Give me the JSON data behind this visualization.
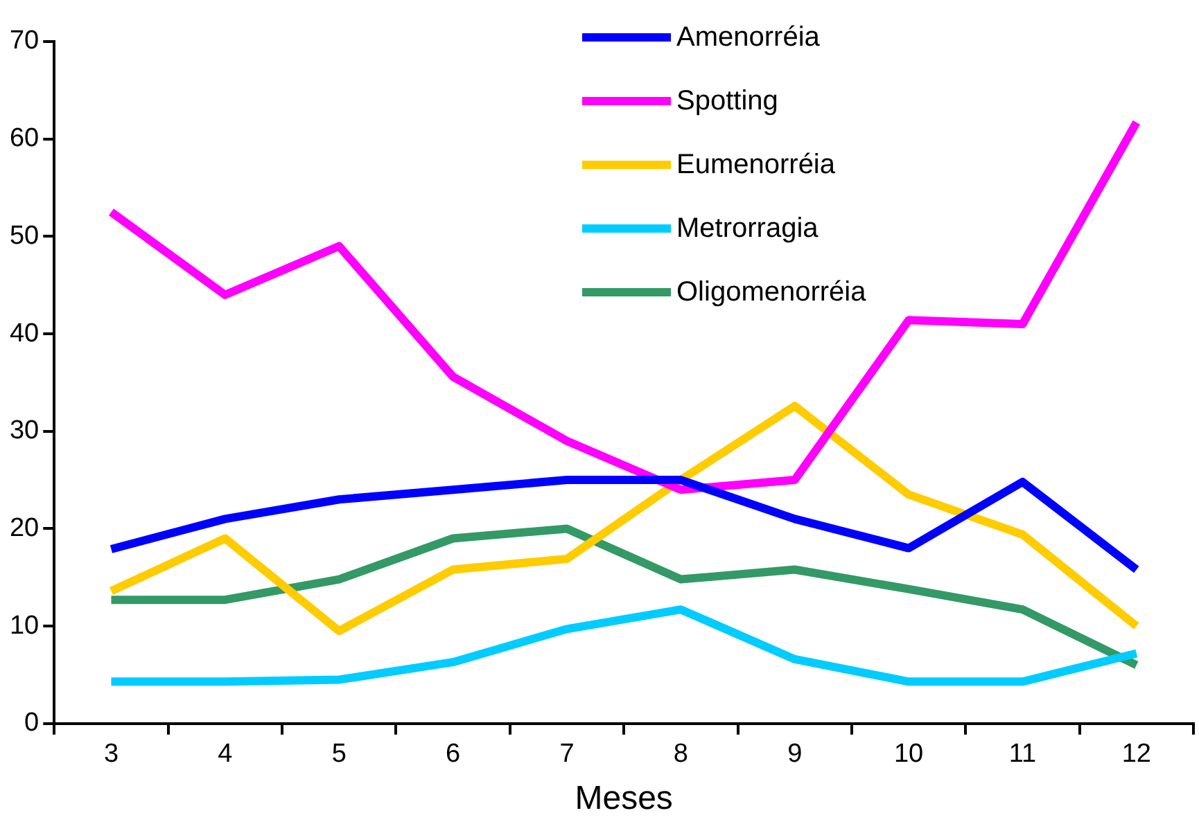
{
  "chart_data": {
    "type": "line",
    "xlabel": "Meses",
    "categories": [
      "3",
      "4",
      "5",
      "6",
      "7",
      "8",
      "9",
      "10",
      "11",
      "12"
    ],
    "series": [
      {
        "name": "Amenorréia",
        "color": "#0000ff",
        "values": [
          17.9,
          21,
          23,
          24,
          25,
          25,
          21,
          18,
          24.8,
          15.8
        ]
      },
      {
        "name": "Spotting",
        "color": "#ff00ff",
        "values": [
          52.5,
          44,
          49,
          35.6,
          29,
          24,
          25,
          41.4,
          41,
          61.7
        ]
      },
      {
        "name": "Eumenorréia",
        "color": "#ffcc00",
        "values": [
          13.6,
          19,
          9.5,
          15.8,
          16.9,
          25,
          32.6,
          23.5,
          19.4,
          10
        ]
      },
      {
        "name": "Metrorragia",
        "color": "#00ccff",
        "values": [
          4.3,
          4.3,
          4.5,
          6.3,
          9.7,
          11.7,
          6.6,
          4.3,
          4.3,
          7.2
        ]
      },
      {
        "name": "Oligomenorréia",
        "color": "#339966",
        "values": [
          12.7,
          12.7,
          14.8,
          19,
          20,
          14.8,
          15.8,
          13.8,
          11.7,
          6
        ]
      }
    ],
    "ylim": [
      0,
      70
    ],
    "yticks": [
      0,
      10,
      20,
      30,
      40,
      50,
      60,
      70
    ],
    "grid": false,
    "legend": "top right",
    "marker": "none",
    "line_style": "solid"
  }
}
